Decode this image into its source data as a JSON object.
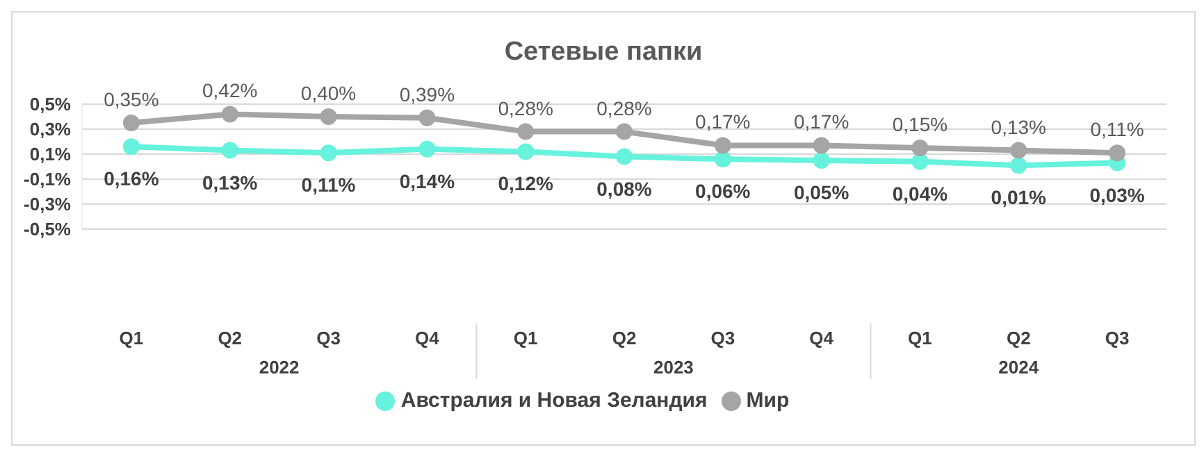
{
  "chart_data": {
    "type": "line",
    "title": "Сетевые папки",
    "categories": [
      "Q1",
      "Q2",
      "Q3",
      "Q4",
      "Q1",
      "Q2",
      "Q3",
      "Q4",
      "Q1",
      "Q2",
      "Q3"
    ],
    "annotations": [
      "2022",
      "2023",
      "2024"
    ],
    "series": [
      {
        "name": "Австралия и Новая Зеландия",
        "color": "#66f2dc",
        "values": [
          0.16,
          0.13,
          0.11,
          0.14,
          0.12,
          0.08,
          0.06,
          0.05,
          0.04,
          0.01,
          0.03
        ],
        "value_labels": [
          "0,16%",
          "0,13%",
          "0,11%",
          "0,14%",
          "0,12%",
          "0,08%",
          "0,06%",
          "0,05%",
          "0,04%",
          "0,01%",
          "0,03%"
        ]
      },
      {
        "name": "Мир",
        "color": "#a5a5a5",
        "values": [
          0.35,
          0.42,
          0.4,
          0.39,
          0.28,
          0.28,
          0.17,
          0.17,
          0.15,
          0.13,
          0.11
        ],
        "value_labels": [
          "0,35%",
          "0,42%",
          "0,40%",
          "0,39%",
          "0,28%",
          "0,28%",
          "0,17%",
          "0,17%",
          "0,15%",
          "0,13%",
          "0,11%"
        ]
      }
    ],
    "ylim": [
      -0.5,
      0.5
    ],
    "yticks": [
      {
        "value": 0.5,
        "label": "0,5%"
      },
      {
        "value": 0.3,
        "label": "0,3%"
      },
      {
        "value": 0.1,
        "label": "0,1%"
      },
      {
        "value": -0.1,
        "label": "-0,1%"
      },
      {
        "value": -0.3,
        "label": "-0,3%"
      },
      {
        "value": -0.5,
        "label": "-0,5%"
      }
    ],
    "grid": "y",
    "legend": "bottom",
    "marker": "circle",
    "line_style": "solid"
  }
}
